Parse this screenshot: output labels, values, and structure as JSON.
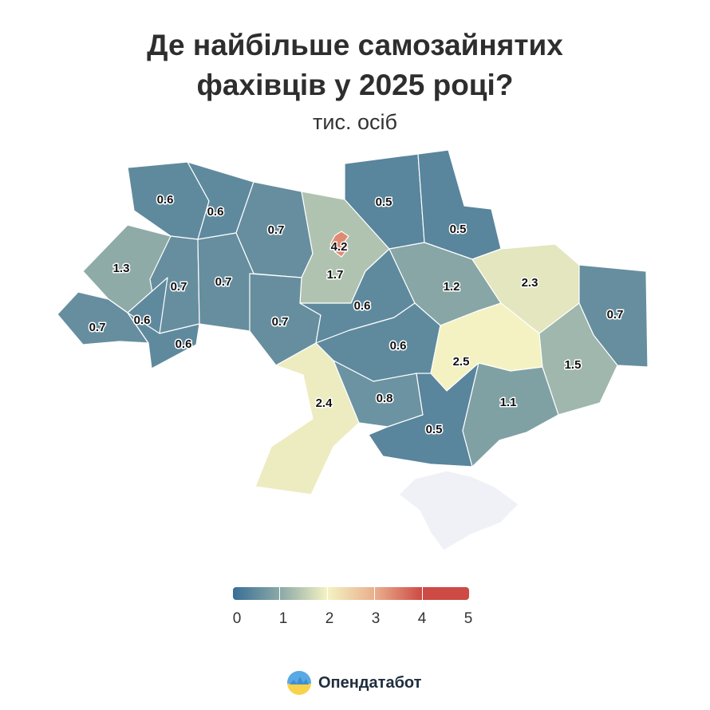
{
  "title_line1": "Де найбільше самозайнятих",
  "title_line2": "фахівців у 2025 році?",
  "subtitle": "тис. осіб",
  "legend": {
    "colors": [
      "#386e97",
      "#8aa8a6",
      "#f4f2c2",
      "#e9af8d",
      "#cd4a45"
    ],
    "ticks": [
      "0",
      "1",
      "2",
      "3",
      "4",
      "5"
    ]
  },
  "brand": {
    "name": "Опендатабот"
  },
  "map": {
    "no_data_color": "#f0f1f6",
    "regions": [
      {
        "id": "volyn",
        "value": 0.6,
        "label": "0.6"
      },
      {
        "id": "rivne",
        "value": 0.6,
        "label": "0.6"
      },
      {
        "id": "zhytomyr",
        "value": 0.7,
        "label": "0.7"
      },
      {
        "id": "kyiv-oblast",
        "value": 1.7,
        "label": "1.7"
      },
      {
        "id": "kyiv-city",
        "value": 4.2,
        "label": "4.2"
      },
      {
        "id": "chernihiv",
        "value": 0.5,
        "label": "0.5"
      },
      {
        "id": "sumy",
        "value": 0.5,
        "label": "0.5"
      },
      {
        "id": "lviv",
        "value": 1.3,
        "label": "1.3"
      },
      {
        "id": "ternopil",
        "value": 0.7,
        "label": "0.7"
      },
      {
        "id": "khmelnytskyi",
        "value": 0.7,
        "label": "0.7"
      },
      {
        "id": "vinnytsia",
        "value": 0.7,
        "label": "0.7"
      },
      {
        "id": "cherkasy",
        "value": 0.6,
        "label": "0.6"
      },
      {
        "id": "poltava",
        "value": 1.2,
        "label": "1.2"
      },
      {
        "id": "kharkiv",
        "value": 2.3,
        "label": "2.3"
      },
      {
        "id": "luhansk",
        "value": 0.7,
        "label": "0.7"
      },
      {
        "id": "zakarpattia",
        "value": 0.7,
        "label": "0.7"
      },
      {
        "id": "ivano-frankivsk",
        "value": 0.6,
        "label": "0.6"
      },
      {
        "id": "chernivtsi",
        "value": 0.6,
        "label": "0.6"
      },
      {
        "id": "kirovohrad",
        "value": 0.6,
        "label": "0.6"
      },
      {
        "id": "dnipropetrovsk",
        "value": 2.5,
        "label": "2.5"
      },
      {
        "id": "donetsk",
        "value": 1.5,
        "label": "1.5"
      },
      {
        "id": "odesa",
        "value": 2.4,
        "label": "2.4"
      },
      {
        "id": "mykolaiv",
        "value": 0.8,
        "label": "0.8"
      },
      {
        "id": "kherson",
        "value": 0.5,
        "label": "0.5"
      },
      {
        "id": "zaporizhzhia",
        "value": 1.1,
        "label": "1.1"
      },
      {
        "id": "crimea",
        "value": null,
        "label": ""
      }
    ]
  }
}
